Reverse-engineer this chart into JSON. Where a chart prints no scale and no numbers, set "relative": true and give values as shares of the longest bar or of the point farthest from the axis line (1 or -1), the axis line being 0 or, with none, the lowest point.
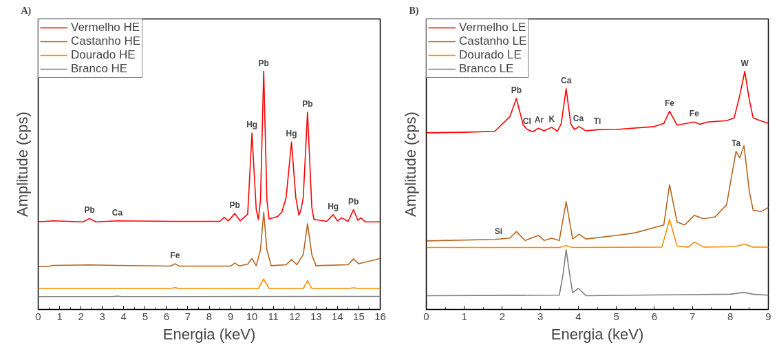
{
  "chart_data": [
    {
      "type": "line",
      "title": "A)",
      "xlabel": "Energia (keV)",
      "ylabel": "Amplitude (cps)",
      "relative": true,
      "xlim": [
        0,
        16
      ],
      "xticks": [
        0,
        1,
        2,
        3,
        4,
        5,
        6,
        7,
        8,
        9,
        10,
        11,
        12,
        13,
        14,
        15,
        16
      ],
      "tick_labels": "x",
      "grid": false,
      "legend": "top left",
      "line_style": "solid",
      "marker": "none",
      "series": [
        {
          "name": "Vermelho HE",
          "color": "#ff0000",
          "x": [
            0,
            0.7,
            2.1,
            2.4,
            2.7,
            3.7,
            6.4,
            8.5,
            8.7,
            8.9,
            9.2,
            9.45,
            9.8,
            10.0,
            10.2,
            10.3,
            10.4,
            10.55,
            10.7,
            10.8,
            11.2,
            11.4,
            11.6,
            11.85,
            12.05,
            12.2,
            12.3,
            12.4,
            12.6,
            12.8,
            12.9,
            13.5,
            13.8,
            14.0,
            14.2,
            14.5,
            14.75,
            14.95,
            15.1,
            15.3,
            16
          ],
          "values": [
            0.368,
            0.372,
            0.368,
            0.382,
            0.368,
            0.372,
            0.37,
            0.37,
            0.387,
            0.372,
            0.403,
            0.372,
            0.4,
            0.741,
            0.42,
            0.378,
            0.46,
            1.0,
            0.46,
            0.38,
            0.39,
            0.409,
            0.47,
            0.703,
            0.47,
            0.395,
            0.422,
            0.47,
            0.828,
            0.43,
            0.378,
            0.37,
            0.398,
            0.372,
            0.385,
            0.37,
            0.419,
            0.375,
            0.385,
            0.368,
            0.368
          ]
        },
        {
          "name": "Castanho HE",
          "color": "#b5651d",
          "x": [
            0,
            0.4,
            0.7,
            2.4,
            3.7,
            6.2,
            6.4,
            6.6,
            9.0,
            9.2,
            9.4,
            9.8,
            10.0,
            10.2,
            10.4,
            10.55,
            10.7,
            10.9,
            11.6,
            11.85,
            12.1,
            12.4,
            12.6,
            12.8,
            13.0,
            14.5,
            14.75,
            15.0,
            16
          ],
          "values": [
            0.18,
            0.18,
            0.185,
            0.187,
            0.185,
            0.182,
            0.192,
            0.182,
            0.182,
            0.195,
            0.183,
            0.19,
            0.214,
            0.184,
            0.25,
            0.409,
            0.25,
            0.184,
            0.188,
            0.209,
            0.188,
            0.23,
            0.36,
            0.23,
            0.184,
            0.188,
            0.212,
            0.192,
            0.214
          ]
        },
        {
          "name": "Dourado HE",
          "color": "#ff8c00",
          "x": [
            0,
            6.2,
            6.4,
            6.6,
            10.3,
            10.55,
            10.8,
            12.4,
            12.6,
            12.8,
            14.5,
            14.75,
            15.0,
            16
          ],
          "values": [
            0.088,
            0.088,
            0.092,
            0.088,
            0.088,
            0.128,
            0.088,
            0.088,
            0.122,
            0.088,
            0.088,
            0.091,
            0.088,
            0.088
          ]
        },
        {
          "name": "Branco HE",
          "color": "#808080",
          "x": [
            0,
            3.5,
            3.7,
            3.9,
            16
          ],
          "values": [
            0.054,
            0.054,
            0.056,
            0.054,
            0.055
          ]
        }
      ],
      "annotations": [
        {
          "text": "Pb",
          "x": 2.4,
          "y": 0.382
        },
        {
          "text": "Ca",
          "x": 3.7,
          "y": 0.372
        },
        {
          "text": "Fe",
          "x": 6.4,
          "y": 0.192
        },
        {
          "text": "Pb",
          "x": 9.2,
          "y": 0.403
        },
        {
          "text": "Hg",
          "x": 10.0,
          "y": 0.741
        },
        {
          "text": "Pb",
          "x": 10.55,
          "y": 1.0
        },
        {
          "text": "Hg",
          "x": 11.85,
          "y": 0.703
        },
        {
          "text": "Pb",
          "x": 12.6,
          "y": 0.828
        },
        {
          "text": "Hg",
          "x": 13.8,
          "y": 0.398
        },
        {
          "text": "Pb",
          "x": 14.75,
          "y": 0.419
        }
      ]
    },
    {
      "type": "line",
      "title": "B)",
      "xlabel": "Energia (keV)",
      "ylabel": "Amplitude (cps)",
      "relative": true,
      "xlim": [
        0,
        9
      ],
      "xticks": [
        0,
        1,
        2,
        3,
        4,
        5,
        6,
        7,
        8,
        9
      ],
      "tick_labels": "x",
      "grid": false,
      "legend": "top left",
      "line_style": "solid",
      "marker": "none",
      "series": [
        {
          "name": "Vermelho LE",
          "color": "#ff0000",
          "x": [
            0,
            1.0,
            1.8,
            2.2,
            2.37,
            2.55,
            2.65,
            2.8,
            2.95,
            3.1,
            3.3,
            3.45,
            3.55,
            3.68,
            3.8,
            3.9,
            4.02,
            4.2,
            4.5,
            5.0,
            6.0,
            6.25,
            6.4,
            6.6,
            7.05,
            7.2,
            7.4,
            7.9,
            8.1,
            8.25,
            8.38,
            8.5,
            8.6,
            8.7,
            9.0
          ],
          "values": [
            0.742,
            0.744,
            0.748,
            0.81,
            0.886,
            0.775,
            0.757,
            0.746,
            0.761,
            0.75,
            0.765,
            0.748,
            0.78,
            0.927,
            0.78,
            0.756,
            0.768,
            0.75,
            0.755,
            0.756,
            0.768,
            0.781,
            0.832,
            0.774,
            0.787,
            0.778,
            0.787,
            0.793,
            0.804,
            0.9,
            1.0,
            0.88,
            0.805,
            0.798,
            0.781
          ]
        },
        {
          "name": "Castanho LE",
          "color": "#b5651d",
          "x": [
            0,
            1.8,
            2.2,
            2.37,
            2.6,
            2.95,
            3.1,
            3.3,
            3.5,
            3.68,
            3.85,
            4.02,
            4.2,
            5.0,
            5.5,
            6.0,
            6.25,
            6.4,
            6.6,
            6.8,
            7.05,
            7.3,
            7.6,
            7.9,
            8.15,
            8.25,
            8.36,
            8.5,
            8.6,
            8.8,
            9.0
          ],
          "values": [
            0.288,
            0.294,
            0.3,
            0.327,
            0.29,
            0.311,
            0.29,
            0.299,
            0.29,
            0.453,
            0.296,
            0.316,
            0.296,
            0.311,
            0.322,
            0.344,
            0.355,
            0.524,
            0.367,
            0.355,
            0.395,
            0.381,
            0.389,
            0.439,
            0.664,
            0.636,
            0.688,
            0.496,
            0.417,
            0.411,
            0.428
          ]
        },
        {
          "name": "Dourado LE",
          "color": "#ff8c00",
          "x": [
            0,
            3.5,
            3.68,
            3.85,
            6.2,
            6.4,
            6.6,
            6.9,
            7.05,
            7.3,
            8.1,
            8.38,
            8.6,
            9.0
          ],
          "values": [
            0.26,
            0.26,
            0.268,
            0.26,
            0.262,
            0.378,
            0.266,
            0.262,
            0.283,
            0.262,
            0.264,
            0.274,
            0.262,
            0.262
          ]
        },
        {
          "name": "Branco LE",
          "color": "#808080",
          "x": [
            0,
            3.5,
            3.6,
            3.68,
            3.77,
            3.85,
            4.0,
            4.2,
            8.0,
            8.35,
            8.6,
            9.0
          ],
          "values": [
            0.058,
            0.06,
            0.15,
            0.251,
            0.15,
            0.07,
            0.089,
            0.058,
            0.064,
            0.072,
            0.064,
            0.06
          ]
        }
      ],
      "annotations": [
        {
          "text": "Si",
          "x": 1.9,
          "y": 0.294
        },
        {
          "text": "Pb",
          "x": 2.37,
          "y": 0.886
        },
        {
          "text": "Cl",
          "x": 2.65,
          "y": 0.757
        },
        {
          "text": "Ar",
          "x": 2.97,
          "y": 0.761
        },
        {
          "text": "K",
          "x": 3.3,
          "y": 0.765
        },
        {
          "text": "Ca",
          "x": 3.68,
          "y": 0.927
        },
        {
          "text": "Ca",
          "x": 4.0,
          "y": 0.768
        },
        {
          "text": "Ti",
          "x": 4.5,
          "y": 0.755
        },
        {
          "text": "Fe",
          "x": 6.4,
          "y": 0.832
        },
        {
          "text": "Fe",
          "x": 7.05,
          "y": 0.787
        },
        {
          "text": "Ta",
          "x": 8.15,
          "y": 0.664
        },
        {
          "text": "W",
          "x": 8.38,
          "y": 1.0
        }
      ]
    }
  ]
}
